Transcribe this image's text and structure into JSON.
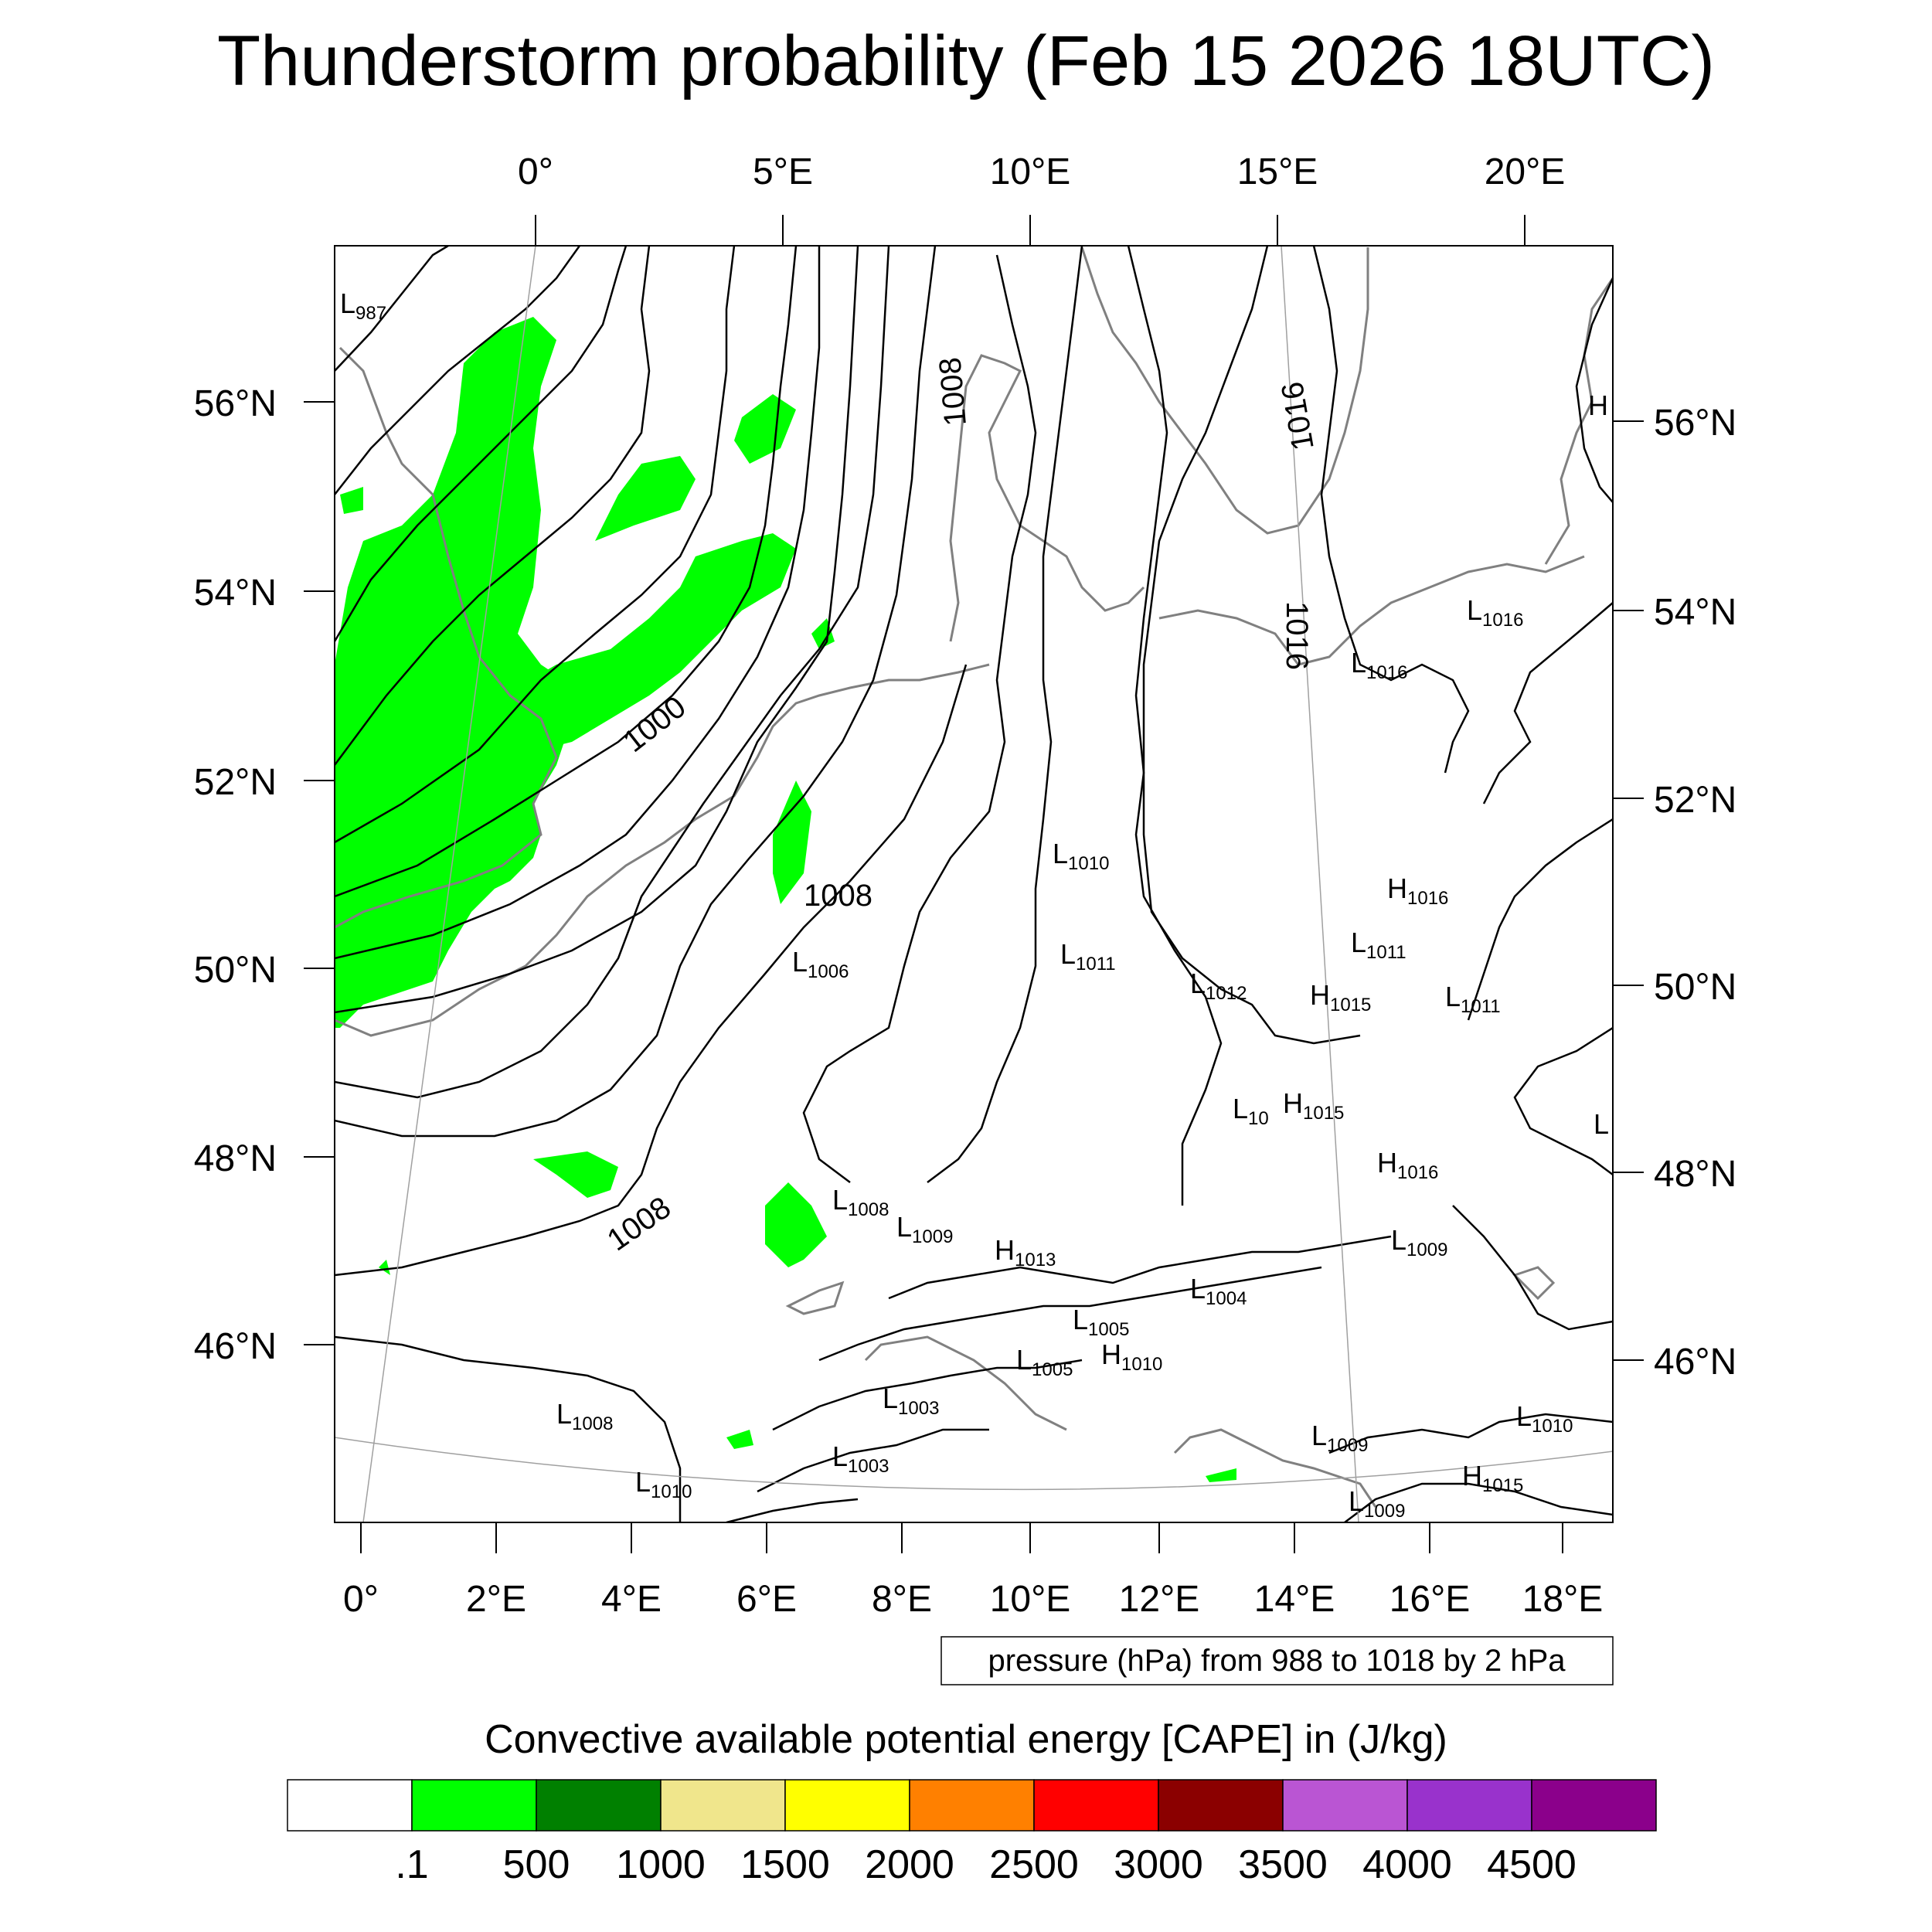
{
  "title": "Thunderstorm probability (Feb 15 2026 18UTC)",
  "top_lon_labels": [
    "0°",
    "5°E",
    "10°E",
    "15°E",
    "20°E"
  ],
  "left_lat_labels": [
    "56°N",
    "54°N",
    "52°N",
    "50°N",
    "48°N",
    "46°N"
  ],
  "right_lat_labels": [
    "56°N",
    "54°N",
    "52°N",
    "50°N",
    "48°N",
    "46°N"
  ],
  "bottom_lon_labels": [
    "0°",
    "2°E",
    "4°E",
    "6°E",
    "8°E",
    "10°E",
    "12°E",
    "14°E",
    "16°E",
    "18°E"
  ],
  "contour_info": "pressure (hPa) from 988 to 1018 by 2 hPa",
  "colorbar": {
    "title": "Convective available potential energy [CAPE] in (J/kg)",
    "colors": [
      "#ffffff",
      "#00ff00",
      "#008000",
      "#f0e68c",
      "#ffff00",
      "#ff8000",
      "#ff0000",
      "#8b0000",
      "#ba55d3",
      "#9932cc",
      "#8b008b"
    ],
    "tick_labels": [
      ".1",
      "500",
      "1000",
      "1500",
      "2000",
      "2500",
      "3000",
      "3500",
      "4000",
      "4500"
    ]
  },
  "contour_labels": [
    "1000",
    "1008",
    "1008",
    "1008",
    "1016",
    "1016"
  ],
  "pressure_centers": [
    {
      "t": "L",
      "v": "987"
    },
    {
      "t": "H",
      "v": ""
    },
    {
      "t": "L",
      "v": "1016"
    },
    {
      "t": "L",
      "v": "1016"
    },
    {
      "t": "L",
      "v": "1010"
    },
    {
      "t": "H",
      "v": "1016"
    },
    {
      "t": "L",
      "v": "1011"
    },
    {
      "t": "L",
      "v": "1006"
    },
    {
      "t": "L",
      "v": "1011"
    },
    {
      "t": "L",
      "v": "1012"
    },
    {
      "t": "H",
      "v": "1015"
    },
    {
      "t": "L",
      "v": "1011"
    },
    {
      "t": "L",
      "v": "10"
    },
    {
      "t": "H",
      "v": "1015"
    },
    {
      "t": "L",
      "v": ""
    },
    {
      "t": "H",
      "v": "1016"
    },
    {
      "t": "L",
      "v": "1008"
    },
    {
      "t": "L",
      "v": "1009"
    },
    {
      "t": "H",
      "v": "1013"
    },
    {
      "t": "L",
      "v": "1009"
    },
    {
      "t": "L",
      "v": "1004"
    },
    {
      "t": "L",
      "v": "1005"
    },
    {
      "t": "L",
      "v": "1005"
    },
    {
      "t": "H",
      "v": "1010"
    },
    {
      "t": "L",
      "v": "1003"
    },
    {
      "t": "L",
      "v": "1008"
    },
    {
      "t": "L",
      "v": "1003"
    },
    {
      "t": "L",
      "v": "1010"
    },
    {
      "t": "L",
      "v": "1009"
    },
    {
      "t": "L",
      "v": "1010"
    },
    {
      "t": "H",
      "v": "1015"
    },
    {
      "t": "L",
      "v": "1009"
    }
  ]
}
